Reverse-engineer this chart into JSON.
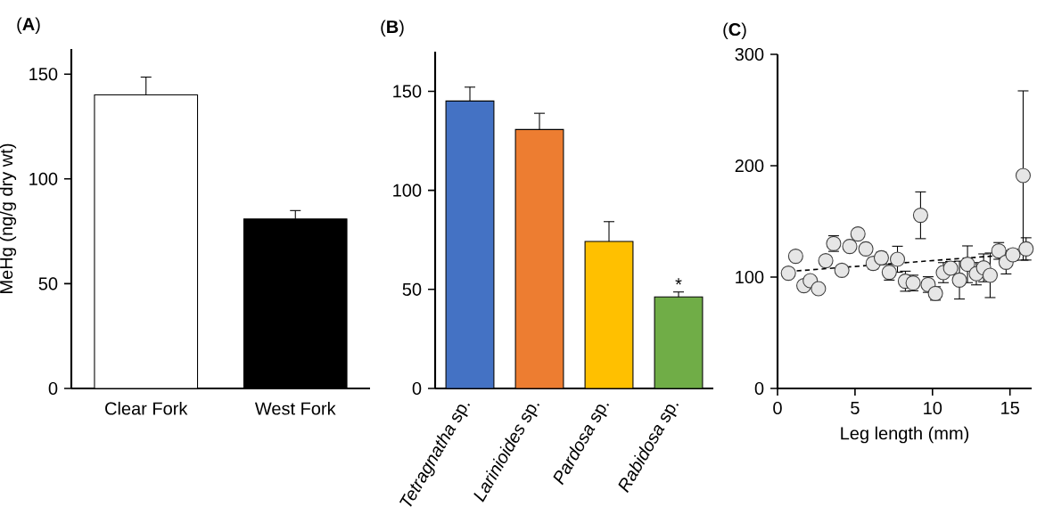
{
  "chart_data": [
    {
      "type": "bar",
      "title": "(**A**)",
      "ylabel": "MeHg (ng/g dry wt)",
      "categories": [
        "Clear Fork",
        "West Fork"
      ],
      "values": [
        140.1,
        80.9
      ],
      "errors": [
        8.5,
        4
      ],
      "colors": [
        "#ffffff",
        "#000000"
      ],
      "ylim": [
        0,
        162
      ],
      "yticks": [
        0,
        50,
        100,
        150
      ]
    },
    {
      "type": "bar",
      "title": "(**B**)",
      "categories": [
        "*Tetragnatha* sp.",
        "*Larinioides* sp.",
        "*Pardosa* sp.",
        "*Rabidosa* sp."
      ],
      "values": [
        145.1,
        130.7,
        74.2,
        46.2
      ],
      "errors": [
        7,
        8.2,
        10,
        2.5
      ],
      "colors": [
        "#4472c4",
        "#ed7d31",
        "#ffc000",
        "#70ad47"
      ],
      "ylim": [
        0,
        170
      ],
      "yticks": [
        0,
        50,
        100,
        150
      ],
      "annotations": [
        {
          "text": "*",
          "x": "*Rabidosa* sp.",
          "y": 48.7
        }
      ]
    },
    {
      "type": "scatter",
      "title": "(**C**)",
      "xlabel": "Leg length (mm)",
      "xlim": [
        0,
        16.4
      ],
      "xticks": [
        0,
        5,
        10,
        15
      ],
      "ylim": [
        0,
        300
      ],
      "yticks": [
        0,
        100,
        200,
        300
      ],
      "series": [
        {
          "type": "scatter",
          "color": "#e6e6e6",
          "marker": "circle",
          "x": [
            0.7,
            1.17,
            1.7,
            2.11,
            2.64,
            3.11,
            3.62,
            4.15,
            4.66,
            5.19,
            5.7,
            6.17,
            6.7,
            7.21,
            7.74,
            8.25,
            8.75,
            9.23,
            9.72,
            10.19,
            10.7,
            11.17,
            11.74,
            12.26,
            12.83,
            13.3,
            13.72,
            14.28,
            14.75,
            15.19,
            15.85,
            16.04
          ],
          "values": [
            103.5,
            118.7,
            92.3,
            96.8,
            89.6,
            114.7,
            130.1,
            106.1,
            127.5,
            138.7,
            125.3,
            112.3,
            117.3,
            104.3,
            116,
            96.3,
            94.7,
            155.5,
            93.3,
            85.3,
            104,
            108,
            97.3,
            111.5,
            103,
            108.3,
            101.6,
            123.5,
            113.3,
            120,
            191.2,
            125.3
          ],
          "errors": [
            null,
            null,
            null,
            null,
            null,
            null,
            7,
            null,
            null,
            null,
            null,
            5,
            5,
            7,
            11.7,
            9,
            7,
            21,
            7,
            6,
            9,
            6,
            17,
            16.5,
            10,
            12.5,
            20,
            7.5,
            10.5,
            5,
            76,
            10
          ]
        },
        {
          "type": "line",
          "color": "#000000",
          "line_style": "dashed",
          "x": [
            0.7,
            15.9
          ],
          "values": [
            105,
            121
          ]
        }
      ]
    }
  ]
}
